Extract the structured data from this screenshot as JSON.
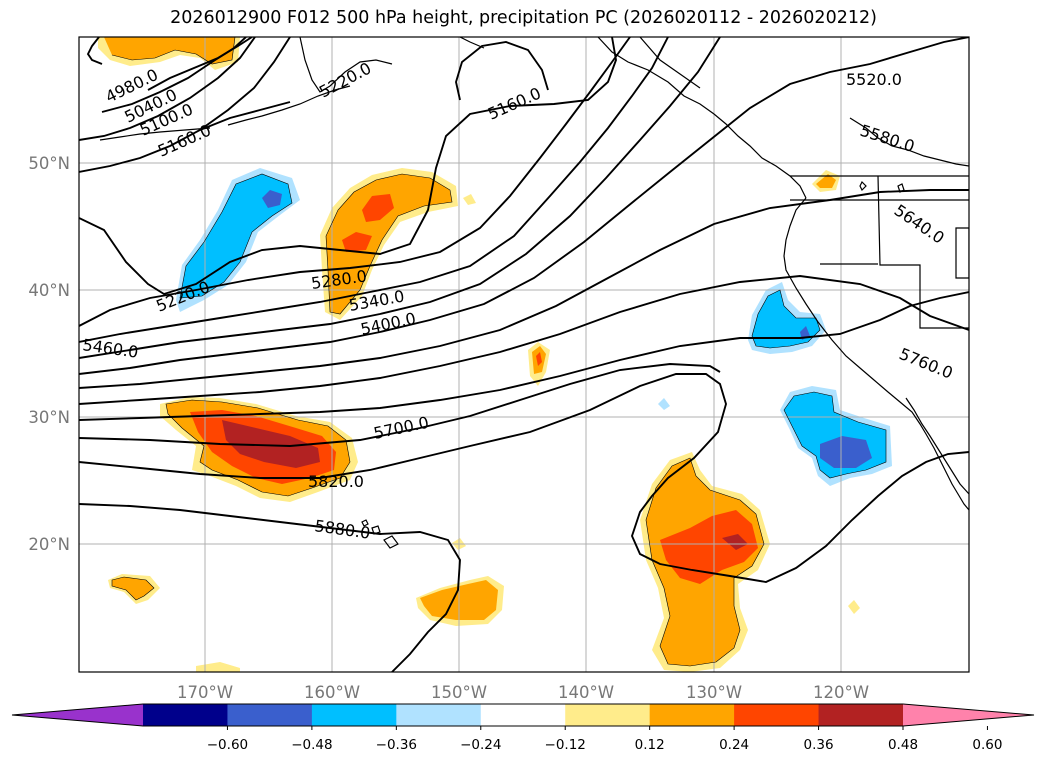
{
  "title": "2026012900 F012 500 hPa height, precipitation PC (2026020112 - 2026020212)",
  "map": {
    "lat_ticks": [
      "50°N",
      "40°N",
      "30°N",
      "20°N"
    ],
    "lon_ticks": [
      "170°W",
      "160°W",
      "150°W",
      "140°W",
      "130°W",
      "120°W"
    ],
    "gridlines": true
  },
  "contour_labels": [
    "4980.0",
    "5040.0",
    "5100.0",
    "5160.0",
    "5220.0",
    "5160.0",
    "5520.0",
    "5580.0",
    "5640.0",
    "5220.0",
    "5280.0",
    "5340.0",
    "5400.0",
    "5460.0",
    "5760.0",
    "5700.0",
    "5820.0",
    "5880.0"
  ],
  "colorbar": {
    "ticks": [
      "−0.60",
      "−0.48",
      "−0.36",
      "−0.24",
      "−0.12",
      "0.12",
      "0.24",
      "0.36",
      "0.48",
      "0.60"
    ],
    "colors": [
      "#9932cc",
      "#00008b",
      "#3a5fcd",
      "#00bfff",
      "#b0e2ff",
      "#ffffff",
      "#ffec8b",
      "#ffa500",
      "#ff4500",
      "#b22222",
      "#ff82ab"
    ],
    "extend": "both"
  }
}
